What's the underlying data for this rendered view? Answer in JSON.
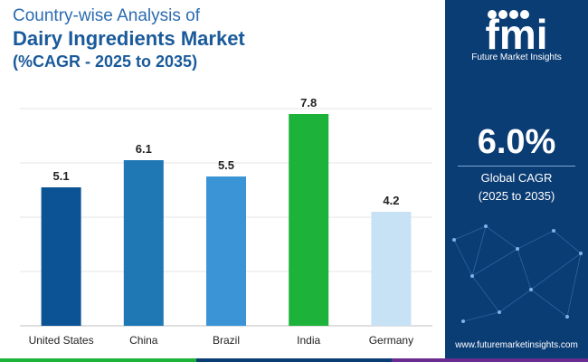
{
  "title": {
    "line1": "Country-wise Analysis of",
    "line2": "Dairy Ingredients Market",
    "line3": "(%CAGR - 2025 to 2035)"
  },
  "chart_data": {
    "type": "bar",
    "categories": [
      "United States",
      "China",
      "Brazil",
      "India",
      "Germany"
    ],
    "values": [
      5.1,
      6.1,
      5.5,
      7.8,
      4.2
    ],
    "colors": [
      "#0b5394",
      "#1f77b4",
      "#3a94d6",
      "#1db33a",
      "#c7e2f5"
    ],
    "ylim": [
      0,
      8
    ],
    "grid": true,
    "legend": "none"
  },
  "sidebar": {
    "logo_caption": "Future Market Insights",
    "kpi_value": "6.0%",
    "kpi_label_line1": "Global CAGR",
    "kpi_label_line2": "(2025 to 2035)",
    "website": "www.futuremarketinsights.com"
  },
  "strip_colors": [
    "#1db33a",
    "#0b3d75",
    "#6a2c91"
  ]
}
